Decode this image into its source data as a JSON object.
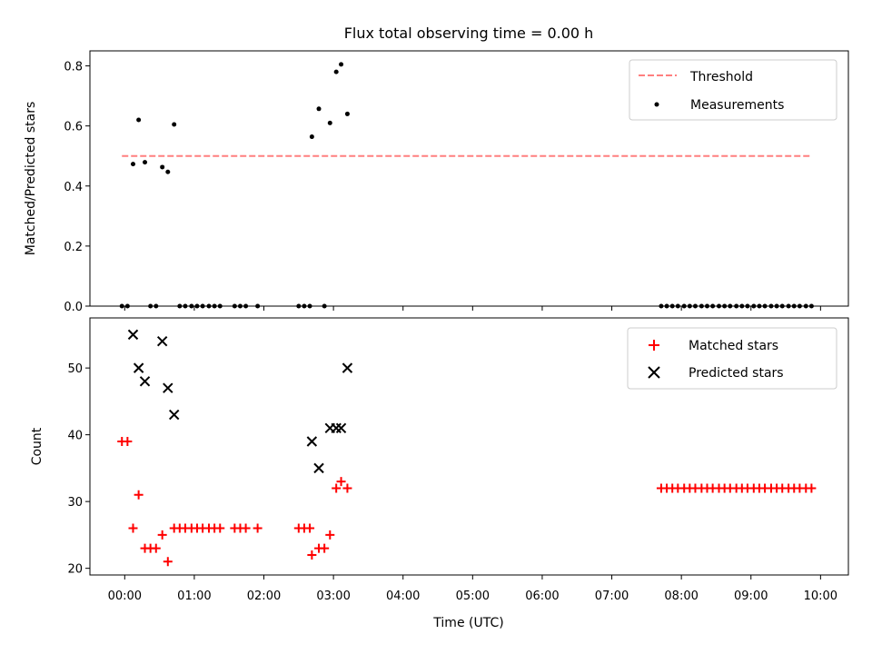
{
  "chart_data": [
    {
      "type": "scatter",
      "title": "Flux total observing time = 0.00 h",
      "ylabel": "Matched/Predicted stars",
      "xlabel": "",
      "xlim": [
        -0.5,
        10.4
      ],
      "ylim": [
        0,
        0.85
      ],
      "yticks": [
        0.0,
        0.2,
        0.4,
        0.6,
        0.8
      ],
      "ytick_labels": [
        "0.0",
        "0.2",
        "0.4",
        "0.6",
        "0.8"
      ],
      "legend_position": "top-right",
      "grid": false,
      "series": [
        {
          "name": "Threshold",
          "kind": "dashed-line",
          "color": "#ff7f7f",
          "x": [
            -0.04,
            9.87
          ],
          "y": [
            0.5,
            0.5
          ]
        },
        {
          "name": "Measurements",
          "kind": "dot",
          "color": "#000000",
          "x": [
            -0.04,
            0.04,
            0.12,
            0.2,
            0.29,
            0.37,
            0.45,
            0.54,
            0.62,
            0.71,
            0.79,
            0.87,
            0.96,
            1.04,
            1.12,
            1.21,
            1.29,
            1.37,
            1.58,
            1.66,
            1.74,
            1.91,
            2.5,
            2.58,
            2.66,
            2.69,
            2.79,
            2.87,
            2.95,
            3.04,
            3.11,
            3.2,
            7.71,
            7.79,
            7.87,
            7.95,
            8.04,
            8.12,
            8.2,
            8.29,
            8.37,
            8.45,
            8.54,
            8.62,
            8.7,
            8.79,
            8.87,
            8.95,
            9.04,
            9.12,
            9.2,
            9.29,
            9.37,
            9.45,
            9.54,
            9.62,
            9.7,
            9.79,
            9.87
          ],
          "y": [
            0.0,
            0.0,
            0.473,
            0.62,
            0.479,
            0.0,
            0.0,
            0.463,
            0.447,
            0.605,
            0.0,
            0.0,
            0.0,
            0.0,
            0.0,
            0.0,
            0.0,
            0.0,
            0.0,
            0.0,
            0.0,
            0.0,
            0.0,
            0.0,
            0.0,
            0.564,
            0.657,
            0.0,
            0.61,
            0.78,
            0.805,
            0.64,
            0.0,
            0.0,
            0.0,
            0.0,
            0.0,
            0.0,
            0.0,
            0.0,
            0.0,
            0.0,
            0.0,
            0.0,
            0.0,
            0.0,
            0.0,
            0.0,
            0.0,
            0.0,
            0.0,
            0.0,
            0.0,
            0.0,
            0.0,
            0.0,
            0.0,
            0.0,
            0.0
          ]
        }
      ]
    },
    {
      "type": "scatter",
      "title": "",
      "ylabel": "Count",
      "xlabel": "Time (UTC)",
      "xlim": [
        -0.5,
        10.4
      ],
      "ylim": [
        19,
        57.5
      ],
      "yticks": [
        20,
        30,
        40,
        50
      ],
      "ytick_labels": [
        "20",
        "30",
        "40",
        "50"
      ],
      "xticks": [
        0,
        1,
        2,
        3,
        4,
        5,
        6,
        7,
        8,
        9,
        10
      ],
      "xtick_labels": [
        "00:00",
        "01:00",
        "02:00",
        "03:00",
        "04:00",
        "05:00",
        "06:00",
        "07:00",
        "08:00",
        "09:00",
        "10:00"
      ],
      "legend_position": "top-right",
      "grid": false,
      "series": [
        {
          "name": "Matched stars",
          "kind": "plus",
          "color": "#ff0000",
          "x": [
            -0.04,
            0.04,
            0.12,
            0.2,
            0.29,
            0.37,
            0.45,
            0.54,
            0.62,
            0.71,
            0.79,
            0.87,
            0.96,
            1.04,
            1.12,
            1.21,
            1.29,
            1.37,
            1.58,
            1.66,
            1.74,
            1.91,
            2.5,
            2.58,
            2.66,
            2.69,
            2.79,
            2.87,
            2.95,
            3.04,
            3.11,
            3.2,
            7.71,
            7.79,
            7.87,
            7.95,
            8.04,
            8.12,
            8.2,
            8.29,
            8.37,
            8.45,
            8.54,
            8.62,
            8.7,
            8.79,
            8.87,
            8.95,
            9.04,
            9.12,
            9.2,
            9.29,
            9.37,
            9.45,
            9.54,
            9.62,
            9.7,
            9.79,
            9.87
          ],
          "y": [
            39,
            39,
            26,
            31,
            23,
            23,
            23,
            25,
            21,
            26,
            26,
            26,
            26,
            26,
            26,
            26,
            26,
            26,
            26,
            26,
            26,
            26,
            26,
            26,
            26,
            22,
            23,
            23,
            25,
            32,
            33,
            32,
            32,
            32,
            32,
            32,
            32,
            32,
            32,
            32,
            32,
            32,
            32,
            32,
            32,
            32,
            32,
            32,
            32,
            32,
            32,
            32,
            32,
            32,
            32,
            32,
            32,
            32,
            32
          ]
        },
        {
          "name": "Predicted stars",
          "kind": "cross",
          "color": "#000000",
          "x": [
            0.12,
            0.2,
            0.29,
            0.54,
            0.62,
            0.71,
            2.69,
            2.79,
            2.95,
            3.04,
            3.11,
            3.2
          ],
          "y": [
            55,
            50,
            48,
            54,
            47,
            43,
            39,
            35,
            41,
            41,
            41,
            50
          ]
        }
      ]
    }
  ]
}
